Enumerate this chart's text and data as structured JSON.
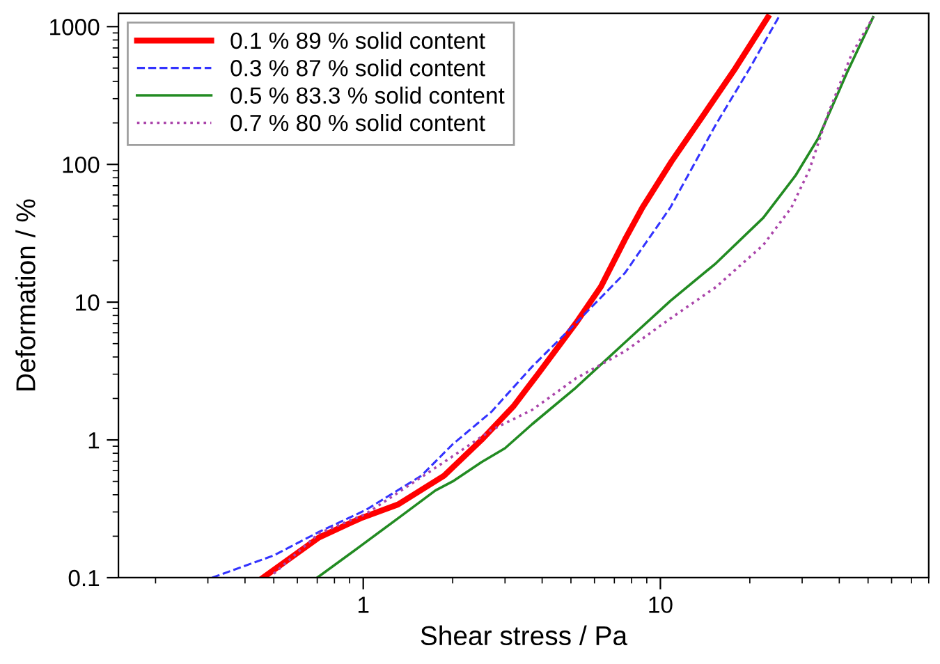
{
  "chart_data": {
    "type": "line",
    "xlabel": "Shear stress / Pa",
    "ylabel": "Deformation / %",
    "log": "xy",
    "xlim": [
      0.15,
      80
    ],
    "ylim": [
      0.1,
      1250
    ],
    "xticks": [
      1,
      10
    ],
    "yticks": [
      0.1,
      1,
      10,
      100,
      1000
    ],
    "legend": "top left",
    "grid": false,
    "series": [
      {
        "name": "0.1 % 89 % solid content",
        "color": "#ff0000",
        "line_style": "solid",
        "x": [
          0.46,
          0.71,
          0.98,
          1.31,
          1.87,
          2.5,
          3.2,
          3.86,
          5.2,
          6.3,
          7.6,
          8.7,
          10.9,
          14.0,
          17.9,
          23
        ],
        "values": [
          0.1,
          0.196,
          0.27,
          0.34,
          0.55,
          1.0,
          1.75,
          2.98,
          7.06,
          12.9,
          28.5,
          48.6,
          105,
          230,
          500,
          1170
        ]
      },
      {
        "name": "0.3 % 87 % solid content",
        "color": "#3333ff",
        "line_style": "dashed",
        "x": [
          0.31,
          0.5,
          0.71,
          1.02,
          1.57,
          2.0,
          2.7,
          3.7,
          5.2,
          7.6,
          10.8,
          15.4,
          20,
          25
        ],
        "values": [
          0.1,
          0.145,
          0.215,
          0.31,
          0.55,
          0.93,
          1.6,
          3.4,
          7.06,
          16.3,
          48.6,
          196,
          500,
          1170
        ]
      },
      {
        "name": "0.5 % 83.3 % solid content",
        "color": "#228b22",
        "line_style": "solid",
        "x": [
          0.7,
          0.98,
          1.31,
          1.75,
          2.0,
          2.5,
          3.0,
          3.7,
          5.2,
          7.6,
          10.8,
          15.4,
          22.2,
          28.5,
          34,
          42.5,
          52
        ],
        "values": [
          0.1,
          0.17,
          0.27,
          0.43,
          0.5,
          0.69,
          0.87,
          1.3,
          2.4,
          5.1,
          10.2,
          19.2,
          41,
          83,
          155,
          465,
          1170
        ]
      },
      {
        "name": "0.7 % 80 % solid content",
        "color": "#aa44aa",
        "line_style": "dotted",
        "x": [
          0.5,
          0.71,
          1.02,
          1.87,
          2.7,
          3.7,
          5.2,
          7.6,
          10.8,
          15.4,
          22.2,
          27.6,
          31.7,
          36.6,
          44,
          52
        ],
        "values": [
          0.107,
          0.21,
          0.29,
          0.69,
          1.18,
          1.65,
          2.8,
          4.4,
          7.6,
          12.9,
          26,
          48.6,
          91,
          230,
          630,
          1170
        ]
      }
    ]
  }
}
